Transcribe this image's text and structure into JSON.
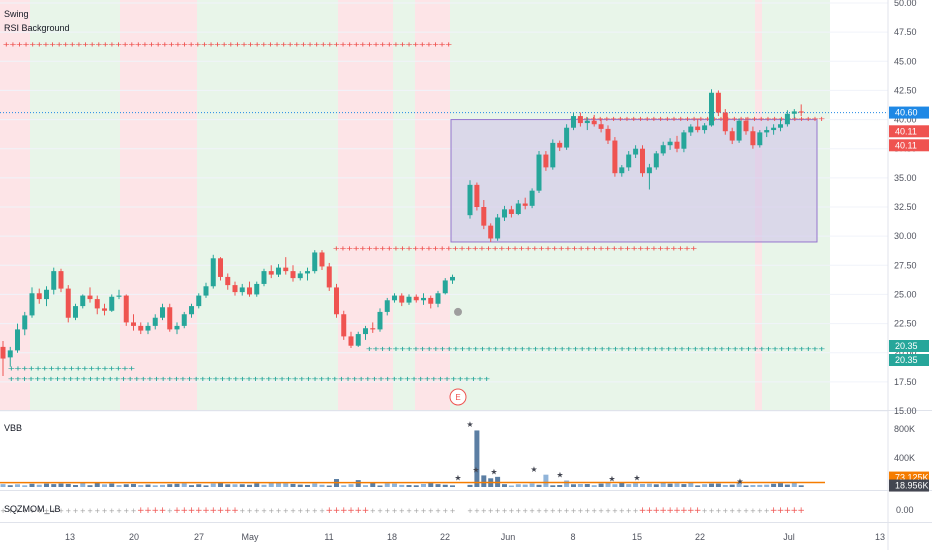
{
  "main_pane": {
    "indicators": [
      "Swing",
      "RSI Background"
    ],
    "price_axis_labels": [
      "50.00",
      "47.50",
      "45.00",
      "42.50",
      "40.00",
      "37.50",
      "35.00",
      "32.50",
      "30.00",
      "27.50",
      "25.00",
      "22.50",
      "20.00",
      "17.50",
      "15.00"
    ],
    "last_price": "40.60",
    "resistance_labels": [
      "40.11",
      "40.11"
    ],
    "support_labels": [
      "20.35",
      "20.35"
    ],
    "earnings_marker": "E",
    "colors": {
      "up": "#26a69a",
      "down": "#ef5350",
      "bg_green": "#e8f5e9",
      "bg_red": "#fde4e7",
      "box": "#d1c4e9",
      "last_price": "#1e88e5"
    }
  },
  "vbb_pane": {
    "title": "VBB",
    "axis_labels": [
      "800K",
      "400K"
    ],
    "value_tags": [
      "73.125K",
      "18.956K"
    ],
    "colors": {
      "bar": "#5b7ea3",
      "ma": "#f57c00",
      "tag_orange": "#f57c00",
      "tag_dark": "#434651"
    }
  },
  "sqz_pane": {
    "title": "SQZMOM_LB",
    "axis_label": "0.00"
  },
  "time_axis": {
    "labels": [
      "13",
      "20",
      "27",
      "May",
      "11",
      "18",
      "22",
      "Jun",
      "8",
      "15",
      "22",
      "Jul",
      "13"
    ]
  },
  "chart_data": {
    "type": "candlestick",
    "candles": [
      [
        20.5,
        21.0,
        18.0,
        19.5
      ],
      [
        19.6,
        20.5,
        18.8,
        20.2
      ],
      [
        20.2,
        22.5,
        20.0,
        22.0
      ],
      [
        22.0,
        23.5,
        21.5,
        23.2
      ],
      [
        23.2,
        25.6,
        23.0,
        25.1
      ],
      [
        25.1,
        25.5,
        24.2,
        24.6
      ],
      [
        24.6,
        25.7,
        24.0,
        25.4
      ],
      [
        25.4,
        27.3,
        25.0,
        27.0
      ],
      [
        27.0,
        27.2,
        25.2,
        25.5
      ],
      [
        25.5,
        25.8,
        22.6,
        23.0
      ],
      [
        23.0,
        24.2,
        22.8,
        24.0
      ],
      [
        24.0,
        25.0,
        23.8,
        24.9
      ],
      [
        24.9,
        25.6,
        24.3,
        24.6
      ],
      [
        24.6,
        24.9,
        23.3,
        23.8
      ],
      [
        23.8,
        24.2,
        23.2,
        23.6
      ],
      [
        23.6,
        25.0,
        23.5,
        24.8
      ],
      [
        24.8,
        25.4,
        24.6,
        24.9
      ],
      [
        24.9,
        25.0,
        22.3,
        22.6
      ],
      [
        22.6,
        23.3,
        21.9,
        22.3
      ],
      [
        22.3,
        22.6,
        21.6,
        21.9
      ],
      [
        21.9,
        22.6,
        21.6,
        22.3
      ],
      [
        22.3,
        23.3,
        22.0,
        23.0
      ],
      [
        23.0,
        24.2,
        22.8,
        23.9
      ],
      [
        23.9,
        24.2,
        21.8,
        22.0
      ],
      [
        22.0,
        22.6,
        21.6,
        22.3
      ],
      [
        22.3,
        23.5,
        22.1,
        23.3
      ],
      [
        23.3,
        24.2,
        23.0,
        24.0
      ],
      [
        24.0,
        25.1,
        23.8,
        24.9
      ],
      [
        24.9,
        26.0,
        24.7,
        25.7
      ],
      [
        25.7,
        28.4,
        25.5,
        28.1
      ],
      [
        28.1,
        28.2,
        26.2,
        26.5
      ],
      [
        26.5,
        26.8,
        25.4,
        25.8
      ],
      [
        25.8,
        26.1,
        24.9,
        25.2
      ],
      [
        25.2,
        25.9,
        24.9,
        25.6
      ],
      [
        25.6,
        26.1,
        24.8,
        25.0
      ],
      [
        25.0,
        26.1,
        24.8,
        25.9
      ],
      [
        25.9,
        27.2,
        25.7,
        27.0
      ],
      [
        27.0,
        27.5,
        26.4,
        26.7
      ],
      [
        26.7,
        27.6,
        26.5,
        27.3
      ],
      [
        27.3,
        28.2,
        26.7,
        27.0
      ],
      [
        27.0,
        27.5,
        26.1,
        26.4
      ],
      [
        26.4,
        27.0,
        26.2,
        26.8
      ],
      [
        26.8,
        27.3,
        26.2,
        27.0
      ],
      [
        27.0,
        28.8,
        26.8,
        28.6
      ],
      [
        28.6,
        28.8,
        27.1,
        27.4
      ],
      [
        27.4,
        27.7,
        25.3,
        25.6
      ],
      [
        25.6,
        25.9,
        23.0,
        23.3
      ],
      [
        23.3,
        23.6,
        21.1,
        21.4
      ],
      [
        21.4,
        21.8,
        20.4,
        20.6
      ],
      [
        20.6,
        21.8,
        20.5,
        21.6
      ],
      [
        21.6,
        22.3,
        21.1,
        22.1
      ],
      [
        22.1,
        22.6,
        21.7,
        22.0
      ],
      [
        22.0,
        23.8,
        21.8,
        23.5
      ],
      [
        23.5,
        24.7,
        23.2,
        24.5
      ],
      [
        24.5,
        25.1,
        24.3,
        24.9
      ],
      [
        24.9,
        25.1,
        24.0,
        24.3
      ],
      [
        24.3,
        25.0,
        24.1,
        24.8
      ],
      [
        24.8,
        25.0,
        24.3,
        24.5
      ],
      [
        24.5,
        25.1,
        24.1,
        24.7
      ],
      [
        24.7,
        24.9,
        23.8,
        24.2
      ],
      [
        24.2,
        25.3,
        23.9,
        25.1
      ],
      [
        25.1,
        26.4,
        25.0,
        26.2
      ],
      [
        26.2,
        26.7,
        25.9,
        26.5
      ],
      [
        31.8,
        34.8,
        31.5,
        34.4
      ],
      [
        34.4,
        34.6,
        32.2,
        32.5
      ],
      [
        32.5,
        33.1,
        30.6,
        30.9
      ],
      [
        30.9,
        31.1,
        29.5,
        29.8
      ],
      [
        29.8,
        31.9,
        29.6,
        31.6
      ],
      [
        31.6,
        32.6,
        31.3,
        32.3
      ],
      [
        32.3,
        32.6,
        31.6,
        31.9
      ],
      [
        31.9,
        33.1,
        31.8,
        32.8
      ],
      [
        32.8,
        33.3,
        32.3,
        32.6
      ],
      [
        32.6,
        34.1,
        32.4,
        33.9
      ],
      [
        33.9,
        37.3,
        33.7,
        37.0
      ],
      [
        37.0,
        37.3,
        35.6,
        35.9
      ],
      [
        35.9,
        38.3,
        35.7,
        38.0
      ],
      [
        38.0,
        38.2,
        37.3,
        37.6
      ],
      [
        37.6,
        39.6,
        37.4,
        39.3
      ],
      [
        39.3,
        40.6,
        39.1,
        40.3
      ],
      [
        40.3,
        40.6,
        39.4,
        39.7
      ],
      [
        39.7,
        40.2,
        39.1,
        39.9
      ],
      [
        39.9,
        40.4,
        39.4,
        39.6
      ],
      [
        39.6,
        40.1,
        38.9,
        39.2
      ],
      [
        39.2,
        39.5,
        37.9,
        38.2
      ],
      [
        38.2,
        38.5,
        35.1,
        35.4
      ],
      [
        35.4,
        36.1,
        35.1,
        35.9
      ],
      [
        35.9,
        37.3,
        35.6,
        37.0
      ],
      [
        37.0,
        37.8,
        36.7,
        37.5
      ],
      [
        37.5,
        37.8,
        35.1,
        35.4
      ],
      [
        35.4,
        36.2,
        34.0,
        35.9
      ],
      [
        35.9,
        37.3,
        35.7,
        37.1
      ],
      [
        37.1,
        38.1,
        36.9,
        37.8
      ],
      [
        37.8,
        38.4,
        37.4,
        38.1
      ],
      [
        38.1,
        38.6,
        37.2,
        37.5
      ],
      [
        37.5,
        39.1,
        37.2,
        38.9
      ],
      [
        38.9,
        39.6,
        38.6,
        39.4
      ],
      [
        39.4,
        40.1,
        38.9,
        39.1
      ],
      [
        39.1,
        39.7,
        38.8,
        39.5
      ],
      [
        39.5,
        42.6,
        39.4,
        42.3
      ],
      [
        42.3,
        42.5,
        40.3,
        40.6
      ],
      [
        40.6,
        40.9,
        38.7,
        39.0
      ],
      [
        39.0,
        39.3,
        37.9,
        38.2
      ],
      [
        38.2,
        40.1,
        38.0,
        39.9
      ],
      [
        39.9,
        40.2,
        38.7,
        39.0
      ],
      [
        39.0,
        39.4,
        37.5,
        37.8
      ],
      [
        37.8,
        39.1,
        37.6,
        38.9
      ],
      [
        38.9,
        39.4,
        38.5,
        39.1
      ],
      [
        39.1,
        39.6,
        38.7,
        39.3
      ],
      [
        39.3,
        40.1,
        39.0,
        39.6
      ],
      [
        39.6,
        40.8,
        39.4,
        40.5
      ],
      [
        40.5,
        40.9,
        40.1,
        40.7
      ],
      [
        40.7,
        41.3,
        40.3,
        40.6
      ]
    ],
    "last_price": 40.6,
    "resistance_levels": [
      46.5,
      40.11,
      29.0
    ],
    "support_levels": [
      20.35,
      18.7,
      17.8
    ],
    "ylim": [
      15.0,
      50.0
    ]
  }
}
